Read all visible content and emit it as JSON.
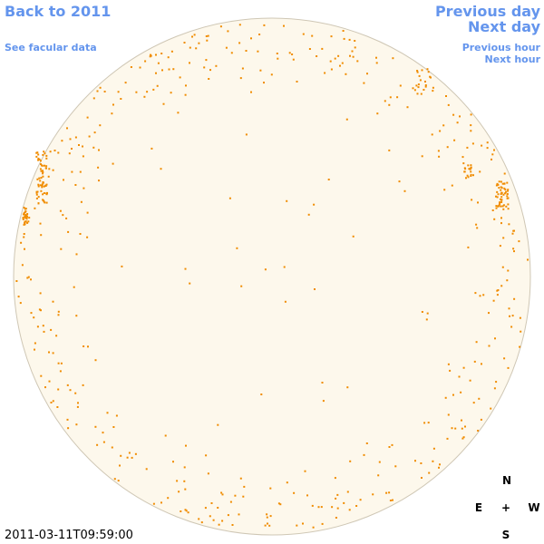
{
  "header": {
    "back_link": "Back to 2011",
    "facular_link": "See facular data",
    "previous_day": "Previous day",
    "next_day": "Next day",
    "previous_hour": "Previous hour",
    "next_hour": "Next hour"
  },
  "timestamp": "2011-03-11T09:59:00",
  "compass": {
    "north": "N",
    "east": "E",
    "center": "+",
    "west": "W",
    "south": "S"
  }
}
